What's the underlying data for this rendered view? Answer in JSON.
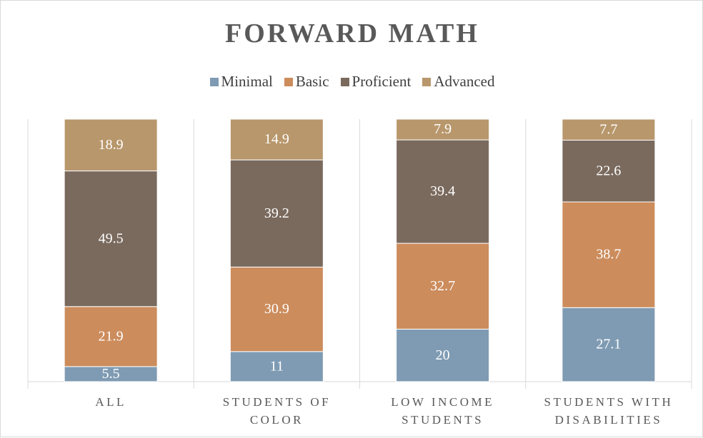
{
  "chart_data": {
    "type": "bar",
    "stacking": "percent",
    "title": "FORWARD MATH",
    "categories": [
      "ALL",
      "STUDENTS OF COLOR",
      "LOW INCOME STUDENTS",
      "STUDENTS WITH DISABILITIES"
    ],
    "series": [
      {
        "name": "Minimal",
        "color": "#7f9bb3",
        "values": [
          5.5,
          11,
          20,
          27.1
        ]
      },
      {
        "name": "Basic",
        "color": "#cc8c5c",
        "values": [
          21.9,
          30.9,
          32.7,
          38.7
        ]
      },
      {
        "name": "Proficient",
        "color": "#7a6a5e",
        "values": [
          49.5,
          39.2,
          39.4,
          22.6
        ]
      },
      {
        "name": "Advanced",
        "color": "#b8976c",
        "values": [
          18.9,
          14.9,
          7.9,
          7.7
        ]
      }
    ]
  }
}
